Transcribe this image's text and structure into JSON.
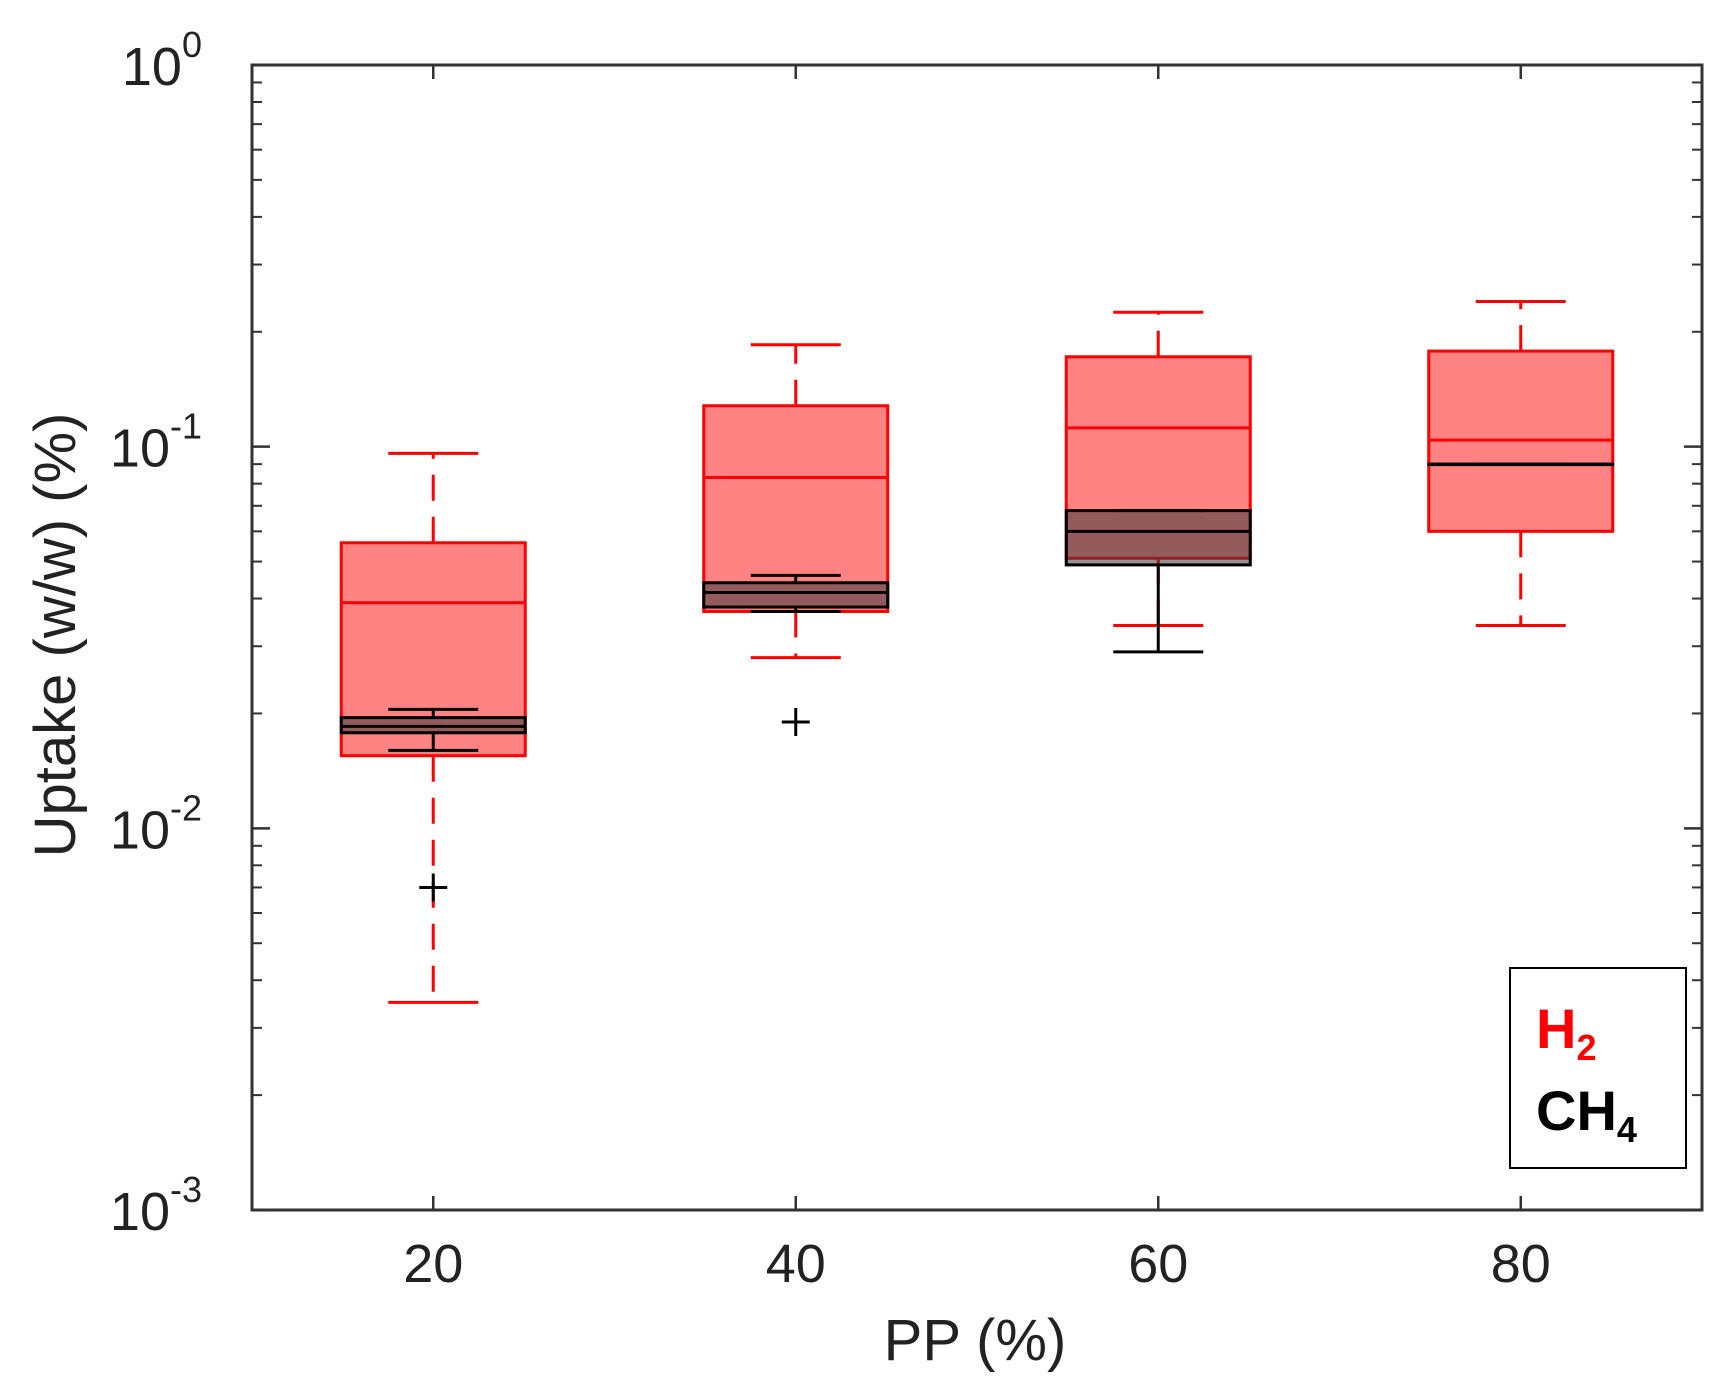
{
  "chart_data": {
    "type": "box",
    "title": "",
    "xlabel": "PP (%)",
    "ylabel": "Uptake (w/w) (%)",
    "yscale": "log",
    "ylim": [
      0.001,
      1
    ],
    "xlim": [
      10,
      90
    ],
    "x_ticks": [
      20,
      40,
      60,
      80
    ],
    "x_tick_labels": [
      "20",
      "40",
      "60",
      "80"
    ],
    "y_ticks": [
      {
        "value": 1,
        "base": "10",
        "exp": "0"
      },
      {
        "value": 0.1,
        "base": "10",
        "exp": "-1"
      },
      {
        "value": 0.01,
        "base": "10",
        "exp": "-2"
      },
      {
        "value": 0.001,
        "base": "10",
        "exp": "-3"
      }
    ],
    "series": [
      {
        "name": "H2",
        "color": "#ff0000",
        "fill": "#ff5a5a",
        "boxes": [
          {
            "x": 20,
            "whisker_low": 0.0035,
            "q1": 0.0155,
            "median": 0.039,
            "q3": 0.056,
            "whisker_high": 0.096,
            "outliers": []
          },
          {
            "x": 40,
            "whisker_low": 0.028,
            "q1": 0.037,
            "median": 0.083,
            "q3": 0.128,
            "whisker_high": 0.185,
            "outliers": []
          },
          {
            "x": 60,
            "whisker_low": 0.034,
            "q1": 0.051,
            "median": 0.112,
            "q3": 0.172,
            "whisker_high": 0.225,
            "outliers": []
          },
          {
            "x": 80,
            "whisker_low": 0.034,
            "q1": 0.06,
            "median": 0.104,
            "q3": 0.178,
            "whisker_high": 0.24,
            "outliers": []
          }
        ]
      },
      {
        "name": "CH4",
        "color": "#000000",
        "fill": "#3a3a3a",
        "boxes": [
          {
            "x": 20,
            "whisker_low": 0.016,
            "q1": 0.0178,
            "median": 0.0185,
            "q3": 0.0195,
            "whisker_high": 0.0205,
            "outliers": [
              0.007
            ]
          },
          {
            "x": 40,
            "whisker_low": 0.037,
            "q1": 0.038,
            "median": 0.0415,
            "q3": 0.044,
            "whisker_high": 0.046,
            "outliers": [
              0.019
            ]
          },
          {
            "x": 60,
            "whisker_low": 0.029,
            "q1": 0.049,
            "median": 0.06,
            "q3": 0.068,
            "whisker_high": 0.068,
            "outliers": []
          },
          {
            "x": 80,
            "whisker_low": 0.09,
            "q1": 0.09,
            "median": 0.09,
            "q3": 0.09,
            "whisker_high": 0.09,
            "outliers": []
          }
        ]
      }
    ],
    "legend": {
      "position": "bottom-right",
      "entries": [
        {
          "base": "H",
          "sub": "2",
          "color": "#ff0000"
        },
        {
          "base": "CH",
          "sub": "4",
          "color": "#000000"
        }
      ]
    }
  }
}
